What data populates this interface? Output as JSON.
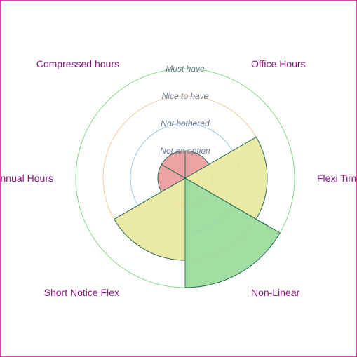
{
  "chart_data": {
    "type": "polar-area",
    "title": "",
    "categories": [
      "Office Hours",
      "Flexi Time",
      "Non-Linear",
      "Short Notice Flex",
      "Annual Hours",
      "Compressed hours"
    ],
    "values": [
      1,
      3,
      4,
      3,
      1,
      1
    ],
    "ring_labels": [
      "Not an option",
      "Not bothered",
      "Nice to have",
      "Must have"
    ],
    "range": [
      0,
      4
    ],
    "colors": {
      "ring_1": "#e8a0a0",
      "ring_2": "#9ec9e8",
      "ring_3": "#f5c99a",
      "ring_4": "#86d986",
      "fill_1": "#e99a99",
      "fill_3": "#e9e89a",
      "fill_4": "#98d998",
      "stroke": "#2e6e5a",
      "label": "#8a1a86",
      "ring_label": "#6b7a8f",
      "frame": "#e33fb0"
    }
  }
}
